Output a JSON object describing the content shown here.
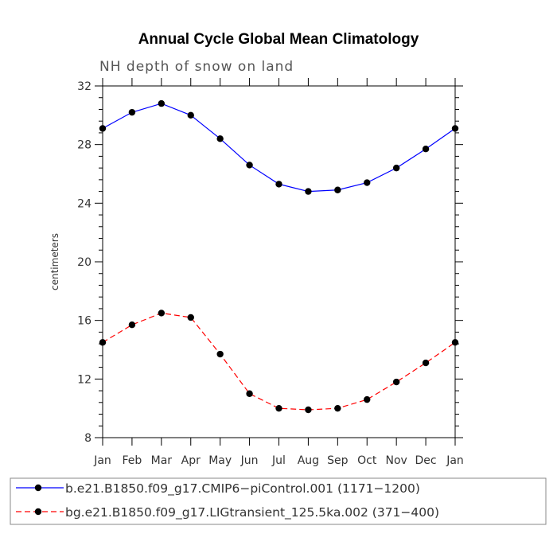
{
  "chart_data": {
    "type": "line",
    "title": "Annual Cycle Global Mean Climatology",
    "subtitle": "NH depth of snow on land",
    "xlabel": "",
    "ylabel": "centimeters",
    "categories": [
      "Jan",
      "Feb",
      "Mar",
      "Apr",
      "May",
      "Jun",
      "Jul",
      "Aug",
      "Sep",
      "Oct",
      "Nov",
      "Dec",
      "Jan"
    ],
    "ylim": [
      8,
      32
    ],
    "yticks": [
      8,
      12,
      16,
      20,
      24,
      28,
      32
    ],
    "grid": false,
    "legend_position": "bottom",
    "series": [
      {
        "name": "b.e21.B1850.f09_g17.CMIP6−piControl.001 (1171−1200)",
        "color": "#0000ff",
        "dash": "solid",
        "values": [
          29.1,
          30.2,
          30.8,
          30.0,
          28.4,
          26.6,
          25.3,
          24.8,
          24.9,
          25.4,
          26.4,
          27.7,
          29.1
        ]
      },
      {
        "name": "bg.e21.B1850.f09_g17.LIGtransient_125.5ka.002 (371−400)",
        "color": "#ff0000",
        "dash": "dashed",
        "values": [
          14.5,
          15.7,
          16.5,
          16.2,
          13.7,
          11.0,
          10.0,
          9.9,
          10.0,
          10.6,
          11.8,
          13.1,
          14.5
        ]
      }
    ]
  }
}
